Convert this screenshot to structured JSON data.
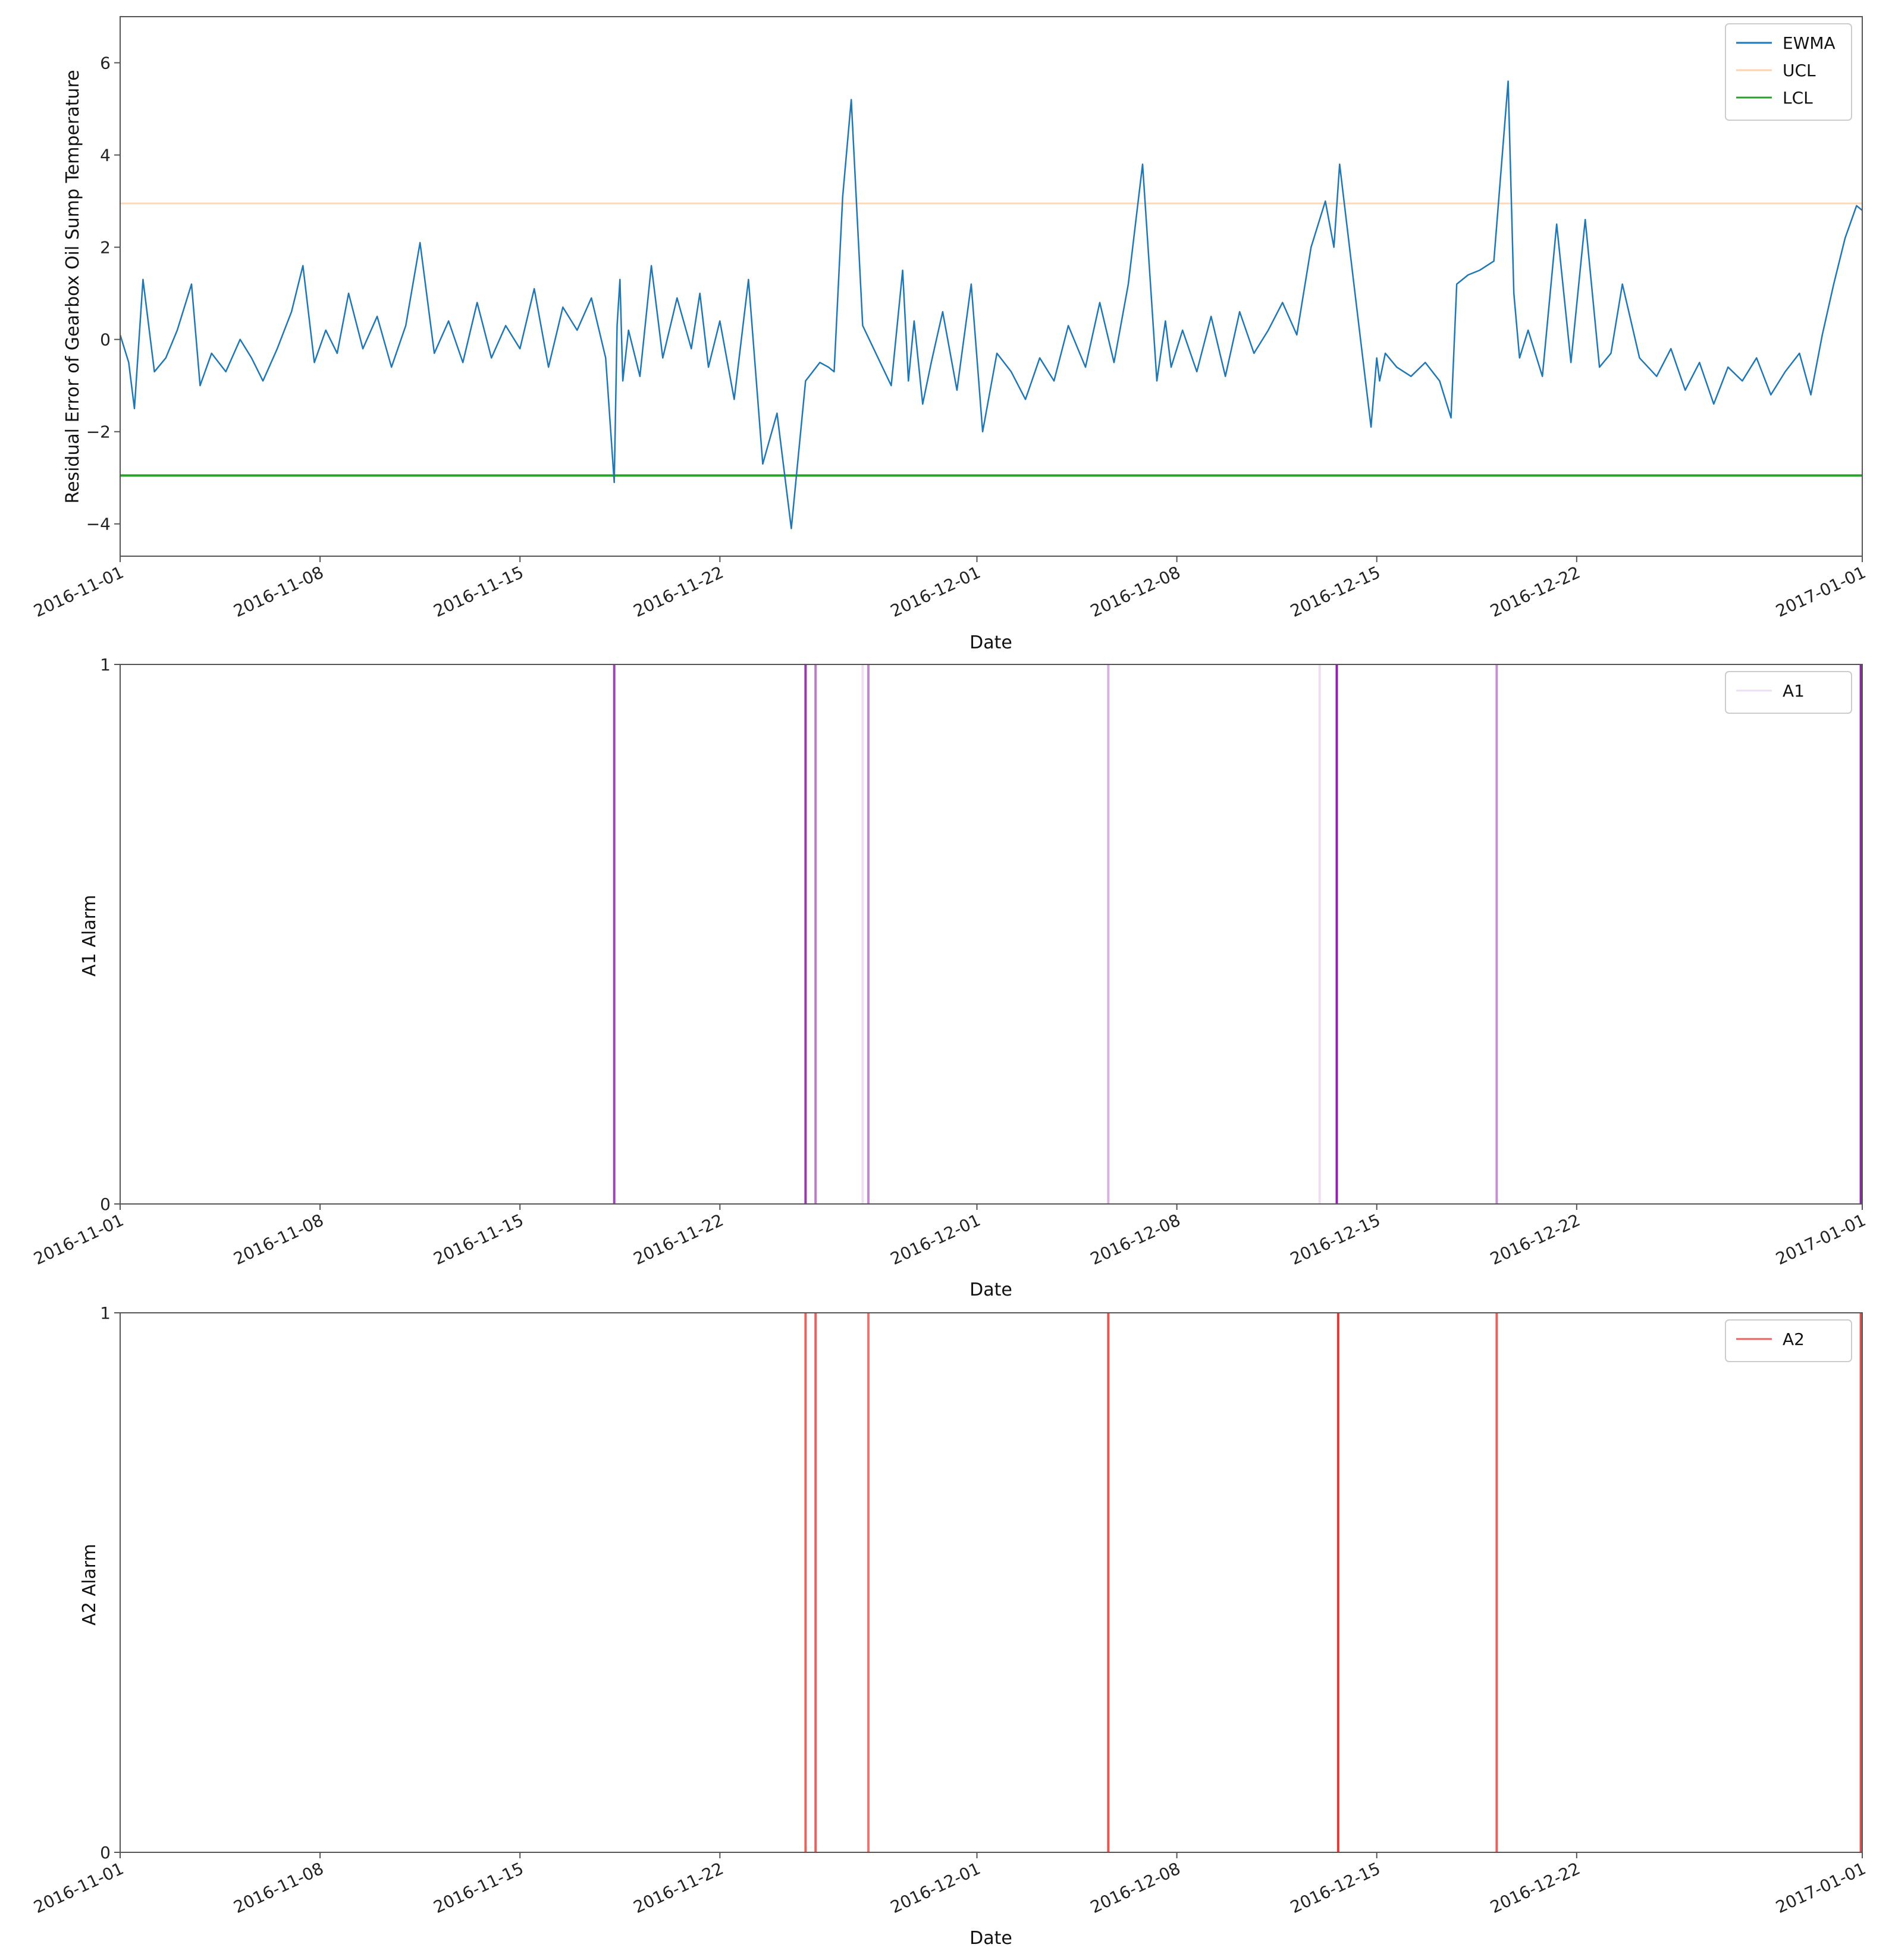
{
  "colors": {
    "ewma": "#1f77b4",
    "ucl": "#ff7f0e",
    "lcl": "#2ca02c",
    "a1": "#8e24aa",
    "a2": "#e53935",
    "axis": "#555555",
    "legend_border": "#cccccc"
  },
  "chart_data": [
    {
      "type": "line",
      "xlabel": "Date",
      "ylabel": "Residual Error of Gearbox Oil Sump Temperature",
      "xlim": [
        0,
        61
      ],
      "ylim": [
        -4.7,
        7.0
      ],
      "x_ticks": [
        {
          "pos": 0,
          "label": "2016-11-01"
        },
        {
          "pos": 7,
          "label": "2016-11-08"
        },
        {
          "pos": 14,
          "label": "2016-11-15"
        },
        {
          "pos": 21,
          "label": "2016-11-22"
        },
        {
          "pos": 30,
          "label": "2016-12-01"
        },
        {
          "pos": 37,
          "label": "2016-12-08"
        },
        {
          "pos": 44,
          "label": "2016-12-15"
        },
        {
          "pos": 51,
          "label": "2016-12-22"
        },
        {
          "pos": 61,
          "label": "2017-01-01"
        }
      ],
      "y_ticks": [
        {
          "pos": -4,
          "label": "−4"
        },
        {
          "pos": -2,
          "label": "−2"
        },
        {
          "pos": 0,
          "label": "0"
        },
        {
          "pos": 2,
          "label": "2"
        },
        {
          "pos": 4,
          "label": "4"
        },
        {
          "pos": 6,
          "label": "6"
        }
      ],
      "legend": [
        "EWMA",
        "UCL",
        "LCL"
      ],
      "legend_position": "upper right",
      "ucl": 2.95,
      "lcl": -2.95,
      "series": [
        {
          "name": "EWMA",
          "x": [
            0,
            0.3,
            0.5,
            0.8,
            1.2,
            1.6,
            2.0,
            2.5,
            2.8,
            3.2,
            3.7,
            4.2,
            4.6,
            5.0,
            5.5,
            6.0,
            6.4,
            6.8,
            7.2,
            7.6,
            8.0,
            8.5,
            9.0,
            9.5,
            10.0,
            10.5,
            11.0,
            11.5,
            12.0,
            12.5,
            13.0,
            13.5,
            14.0,
            14.5,
            15.0,
            15.5,
            16.0,
            16.5,
            17.0,
            17.3,
            17.4,
            17.5,
            17.6,
            17.8,
            18.2,
            18.6,
            19.0,
            19.5,
            20.0,
            20.3,
            20.6,
            21.0,
            21.5,
            22.0,
            22.5,
            23.0,
            23.5,
            24.0,
            24.5,
            24.8,
            25.0,
            25.3,
            25.6,
            26.0,
            27.0,
            27.4,
            27.6,
            27.8,
            28.1,
            28.4,
            28.8,
            29.3,
            29.8,
            30.2,
            30.7,
            31.2,
            31.7,
            32.2,
            32.7,
            33.2,
            33.8,
            34.3,
            34.8,
            35.3,
            35.8,
            36.3,
            36.6,
            36.8,
            37.2,
            37.7,
            38.2,
            38.7,
            39.2,
            39.7,
            40.2,
            40.7,
            41.2,
            41.7,
            42.2,
            42.5,
            42.7,
            43.2,
            43.8,
            44.0,
            44.1,
            44.3,
            44.7,
            45.2,
            45.7,
            46.2,
            46.6,
            46.8,
            47.2,
            47.6,
            48.1,
            48.6,
            48.8,
            49.0,
            49.3,
            49.8,
            50.3,
            50.8,
            51.3,
            51.8,
            52.2,
            52.6,
            53.2,
            53.8,
            54.3,
            54.8,
            55.3,
            55.8,
            56.3,
            56.8,
            57.3,
            57.8,
            58.3,
            58.8,
            59.2,
            59.6,
            60.0,
            60.4,
            60.8,
            61.0
          ],
          "values": [
            0.1,
            -0.5,
            -1.5,
            1.3,
            -0.7,
            -0.4,
            0.2,
            1.2,
            -1.0,
            -0.3,
            -0.7,
            0.0,
            -0.4,
            -0.9,
            -0.2,
            0.6,
            1.6,
            -0.5,
            0.2,
            -0.3,
            1.0,
            -0.2,
            0.5,
            -0.6,
            0.3,
            2.1,
            -0.3,
            0.4,
            -0.5,
            0.8,
            -0.4,
            0.3,
            -0.2,
            1.1,
            -0.6,
            0.7,
            0.2,
            0.9,
            -0.4,
            -3.1,
            0.3,
            1.3,
            -0.9,
            0.2,
            -0.8,
            1.6,
            -0.4,
            0.9,
            -0.2,
            1.0,
            -0.6,
            0.4,
            -1.3,
            1.3,
            -2.7,
            -1.6,
            -4.1,
            -0.9,
            -0.5,
            -0.6,
            -0.7,
            3.1,
            5.2,
            0.3,
            -1.0,
            1.5,
            -0.9,
            0.4,
            -1.4,
            -0.5,
            0.6,
            -1.1,
            1.2,
            -2.0,
            -0.3,
            -0.7,
            -1.3,
            -0.4,
            -0.9,
            0.3,
            -0.6,
            0.8,
            -0.5,
            1.2,
            3.8,
            -0.9,
            0.4,
            -0.6,
            0.2,
            -0.7,
            0.5,
            -0.8,
            0.6,
            -0.3,
            0.2,
            0.8,
            0.1,
            2.0,
            3.0,
            2.0,
            3.8,
            1.2,
            -1.9,
            -0.4,
            -0.9,
            -0.3,
            -0.6,
            -0.8,
            -0.5,
            -0.9,
            -1.7,
            1.2,
            1.4,
            1.5,
            1.7,
            5.6,
            1.0,
            -0.4,
            0.2,
            -0.8,
            2.5,
            -0.5,
            2.6,
            -0.6,
            -0.3,
            1.2,
            -0.4,
            -0.8,
            -0.2,
            -1.1,
            -0.5,
            -1.4,
            -0.6,
            -0.9,
            -0.4,
            -1.2,
            -0.7,
            -0.3,
            -1.2,
            0.1,
            1.2,
            2.2,
            2.9,
            2.8
          ]
        }
      ]
    },
    {
      "type": "bar",
      "xlabel": "Date",
      "ylabel": "A1 Alarm",
      "xlim": [
        0,
        61
      ],
      "ylim": [
        0,
        1
      ],
      "x_ticks": [
        {
          "pos": 0,
          "label": "2016-11-01"
        },
        {
          "pos": 7,
          "label": "2016-11-08"
        },
        {
          "pos": 14,
          "label": "2016-11-15"
        },
        {
          "pos": 21,
          "label": "2016-11-22"
        },
        {
          "pos": 30,
          "label": "2016-12-01"
        },
        {
          "pos": 37,
          "label": "2016-12-08"
        },
        {
          "pos": 44,
          "label": "2016-12-15"
        },
        {
          "pos": 51,
          "label": "2016-12-22"
        },
        {
          "pos": 61,
          "label": "2017-01-01"
        }
      ],
      "y_ticks": [
        {
          "pos": 0,
          "label": "0"
        },
        {
          "pos": 1,
          "label": "1"
        }
      ],
      "legend": [
        "A1"
      ],
      "legend_position": "upper right",
      "events": [
        {
          "x": 17.3,
          "strength": 0.85
        },
        {
          "x": 24.0,
          "strength": 0.9
        },
        {
          "x": 24.35,
          "strength": 0.6
        },
        {
          "x": 26.0,
          "strength": 0.15
        },
        {
          "x": 26.2,
          "strength": 0.55
        },
        {
          "x": 34.6,
          "strength": 0.35
        },
        {
          "x": 42.0,
          "strength": 0.15
        },
        {
          "x": 42.6,
          "strength": 1.0
        },
        {
          "x": 48.2,
          "strength": 0.5
        },
        {
          "x": 60.95,
          "strength": 1.0
        }
      ]
    },
    {
      "type": "bar",
      "xlabel": "Date",
      "ylabel": "A2 Alarm",
      "xlim": [
        0,
        61
      ],
      "ylim": [
        0,
        1
      ],
      "x_ticks": [
        {
          "pos": 0,
          "label": "2016-11-01"
        },
        {
          "pos": 7,
          "label": "2016-11-08"
        },
        {
          "pos": 14,
          "label": "2016-11-15"
        },
        {
          "pos": 21,
          "label": "2016-11-22"
        },
        {
          "pos": 30,
          "label": "2016-12-01"
        },
        {
          "pos": 37,
          "label": "2016-12-08"
        },
        {
          "pos": 44,
          "label": "2016-12-15"
        },
        {
          "pos": 51,
          "label": "2016-12-22"
        },
        {
          "pos": 61,
          "label": "2017-01-01"
        }
      ],
      "y_ticks": [
        {
          "pos": 0,
          "label": "0"
        },
        {
          "pos": 1,
          "label": "1"
        }
      ],
      "legend": [
        "A2"
      ],
      "legend_position": "upper right",
      "events": [
        {
          "x": 24.0,
          "strength": 0.8
        },
        {
          "x": 24.35,
          "strength": 0.8
        },
        {
          "x": 26.2,
          "strength": 0.7
        },
        {
          "x": 34.6,
          "strength": 0.85
        },
        {
          "x": 42.65,
          "strength": 1.0
        },
        {
          "x": 48.2,
          "strength": 0.8
        },
        {
          "x": 60.95,
          "strength": 0.9
        }
      ]
    }
  ]
}
